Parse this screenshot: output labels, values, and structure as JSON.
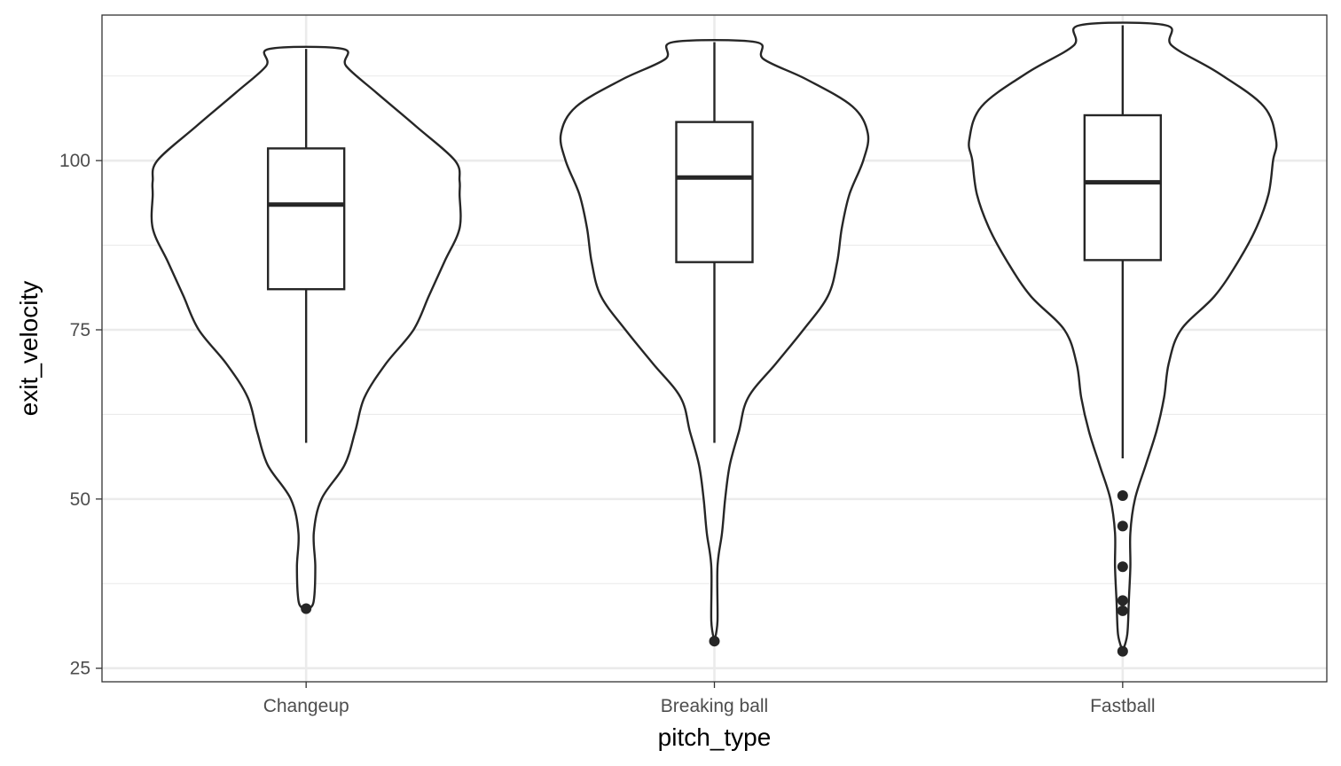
{
  "chart_data": {
    "type": "violin",
    "xlabel": "pitch_type",
    "ylabel": "exit_velocity",
    "ylim": [
      23.0,
      121.5
    ],
    "y_ticks": [
      25,
      50,
      75,
      100
    ],
    "y_minor_ticks": [
      37.5,
      62.5,
      87.5,
      112.5
    ],
    "grid": true,
    "legend": "none",
    "categories": [
      "Changeup",
      "Breaking ball",
      "Fastball"
    ],
    "series": [
      {
        "category": "Changeup",
        "box": {
          "whisker_low": 58.3,
          "q1": 81.0,
          "median": 93.5,
          "q3": 101.8,
          "whisker_high": 116.5
        },
        "outliers": [
          33.8
        ],
        "density": [
          [
            33.8,
            0.02
          ],
          [
            35.0,
            0.05
          ],
          [
            40.0,
            0.06
          ],
          [
            45.0,
            0.05
          ],
          [
            50.0,
            0.1
          ],
          [
            55.0,
            0.25
          ],
          [
            60.0,
            0.32
          ],
          [
            65.0,
            0.38
          ],
          [
            70.0,
            0.52
          ],
          [
            75.0,
            0.7
          ],
          [
            80.0,
            0.8
          ],
          [
            85.0,
            0.9
          ],
          [
            90.0,
            1.0
          ],
          [
            95.0,
            1.0
          ],
          [
            97.0,
            1.0
          ],
          [
            100.0,
            0.97
          ],
          [
            105.0,
            0.72
          ],
          [
            110.0,
            0.46
          ],
          [
            114.0,
            0.26
          ],
          [
            116.5,
            0.24
          ]
        ]
      },
      {
        "category": "Breaking ball",
        "box": {
          "whisker_low": 58.3,
          "q1": 85.0,
          "median": 97.5,
          "q3": 105.7,
          "whisker_high": 117.5
        },
        "outliers": [
          29.0
        ],
        "density": [
          [
            29.0,
            0.0
          ],
          [
            32.0,
            0.02
          ],
          [
            40.0,
            0.02
          ],
          [
            45.0,
            0.05
          ],
          [
            50.0,
            0.07
          ],
          [
            55.0,
            0.1
          ],
          [
            60.0,
            0.16
          ],
          [
            65.0,
            0.22
          ],
          [
            70.0,
            0.4
          ],
          [
            75.0,
            0.58
          ],
          [
            80.0,
            0.74
          ],
          [
            85.0,
            0.8
          ],
          [
            90.0,
            0.83
          ],
          [
            95.0,
            0.88
          ],
          [
            100.0,
            0.97
          ],
          [
            104.0,
            1.0
          ],
          [
            108.0,
            0.9
          ],
          [
            112.0,
            0.6
          ],
          [
            115.0,
            0.32
          ],
          [
            117.5,
            0.27
          ]
        ]
      },
      {
        "category": "Fastball",
        "box": {
          "whisker_low": 56.0,
          "q1": 85.3,
          "median": 96.8,
          "q3": 106.7,
          "whisker_high": 120.0
        },
        "outliers": [
          50.5,
          46.0,
          40.0,
          35.0,
          33.5,
          27.5
        ],
        "density": [
          [
            27.5,
            0.0
          ],
          [
            30.0,
            0.03
          ],
          [
            35.0,
            0.04
          ],
          [
            40.0,
            0.05
          ],
          [
            45.0,
            0.05
          ],
          [
            50.0,
            0.08
          ],
          [
            55.0,
            0.15
          ],
          [
            60.0,
            0.22
          ],
          [
            65.0,
            0.27
          ],
          [
            70.0,
            0.3
          ],
          [
            75.0,
            0.38
          ],
          [
            80.0,
            0.6
          ],
          [
            85.0,
            0.75
          ],
          [
            90.0,
            0.87
          ],
          [
            95.0,
            0.95
          ],
          [
            100.0,
            0.98
          ],
          [
            103.0,
            1.0
          ],
          [
            108.0,
            0.92
          ],
          [
            113.0,
            0.62
          ],
          [
            117.0,
            0.32
          ],
          [
            120.0,
            0.28
          ]
        ]
      }
    ]
  }
}
